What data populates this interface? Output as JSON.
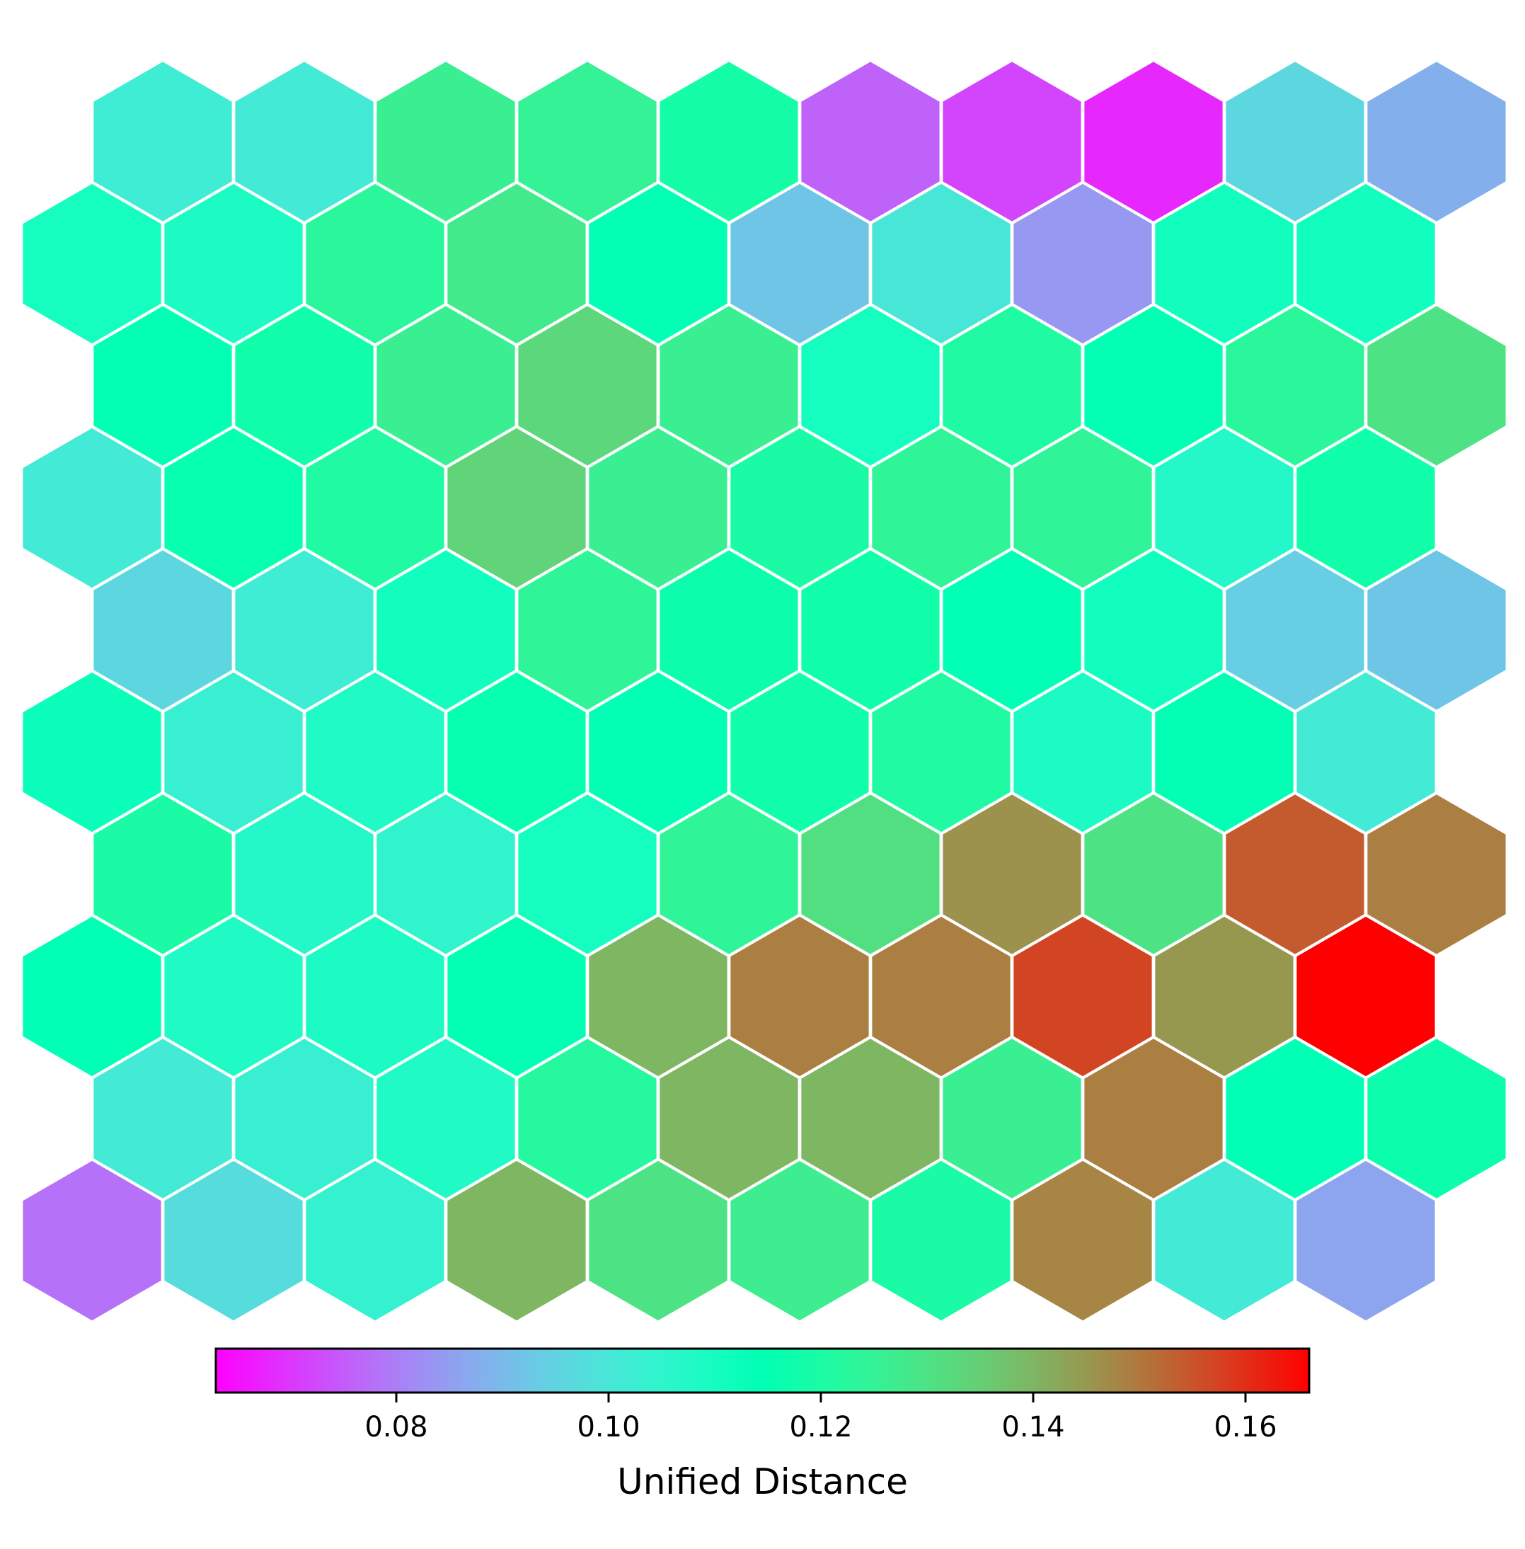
{
  "chart_data": {
    "type": "heatmap",
    "layout": "hexagonal-grid",
    "rows": 10,
    "cols": 10,
    "value_range": [
      0.063,
      0.166
    ],
    "colormap": "rainbow",
    "values": [
      [
        0.102,
        0.101,
        0.126,
        0.125,
        0.119,
        0.076,
        0.072,
        0.068,
        0.096,
        0.088
      ],
      [
        0.11,
        0.109,
        0.123,
        0.128,
        0.115,
        0.092,
        0.1,
        0.084,
        0.111,
        0.111
      ],
      [
        0.115,
        0.118,
        0.126,
        0.133,
        0.126,
        0.11,
        0.121,
        0.115,
        0.123,
        0.13
      ],
      [
        0.101,
        0.116,
        0.121,
        0.134,
        0.126,
        0.12,
        0.124,
        0.124,
        0.107,
        0.118
      ],
      [
        0.096,
        0.102,
        0.111,
        0.124,
        0.117,
        0.118,
        0.114,
        0.111,
        0.094,
        0.092
      ],
      [
        0.112,
        0.103,
        0.108,
        0.116,
        0.115,
        0.118,
        0.121,
        0.109,
        0.115,
        0.101
      ],
      [
        0.12,
        0.107,
        0.105,
        0.11,
        0.124,
        0.131,
        0.146,
        0.13,
        0.154,
        0.149
      ],
      [
        0.114,
        0.108,
        0.109,
        0.115,
        0.14,
        0.149,
        0.149,
        0.157,
        0.145,
        0.166
      ],
      [
        0.101,
        0.103,
        0.108,
        0.122,
        0.14,
        0.14,
        0.126,
        0.149,
        0.114,
        0.117
      ],
      [
        0.078,
        0.097,
        0.104,
        0.14,
        0.13,
        0.127,
        0.12,
        0.148,
        0.101,
        0.086
      ]
    ],
    "colorbar": {
      "label": "Unified Distance",
      "ticks": [
        0.08,
        0.1,
        0.12,
        0.14,
        0.16
      ],
      "tick_labels": [
        "0.08",
        "0.10",
        "0.12",
        "0.14",
        "0.16"
      ]
    },
    "grid": false,
    "axes_visible": false
  }
}
